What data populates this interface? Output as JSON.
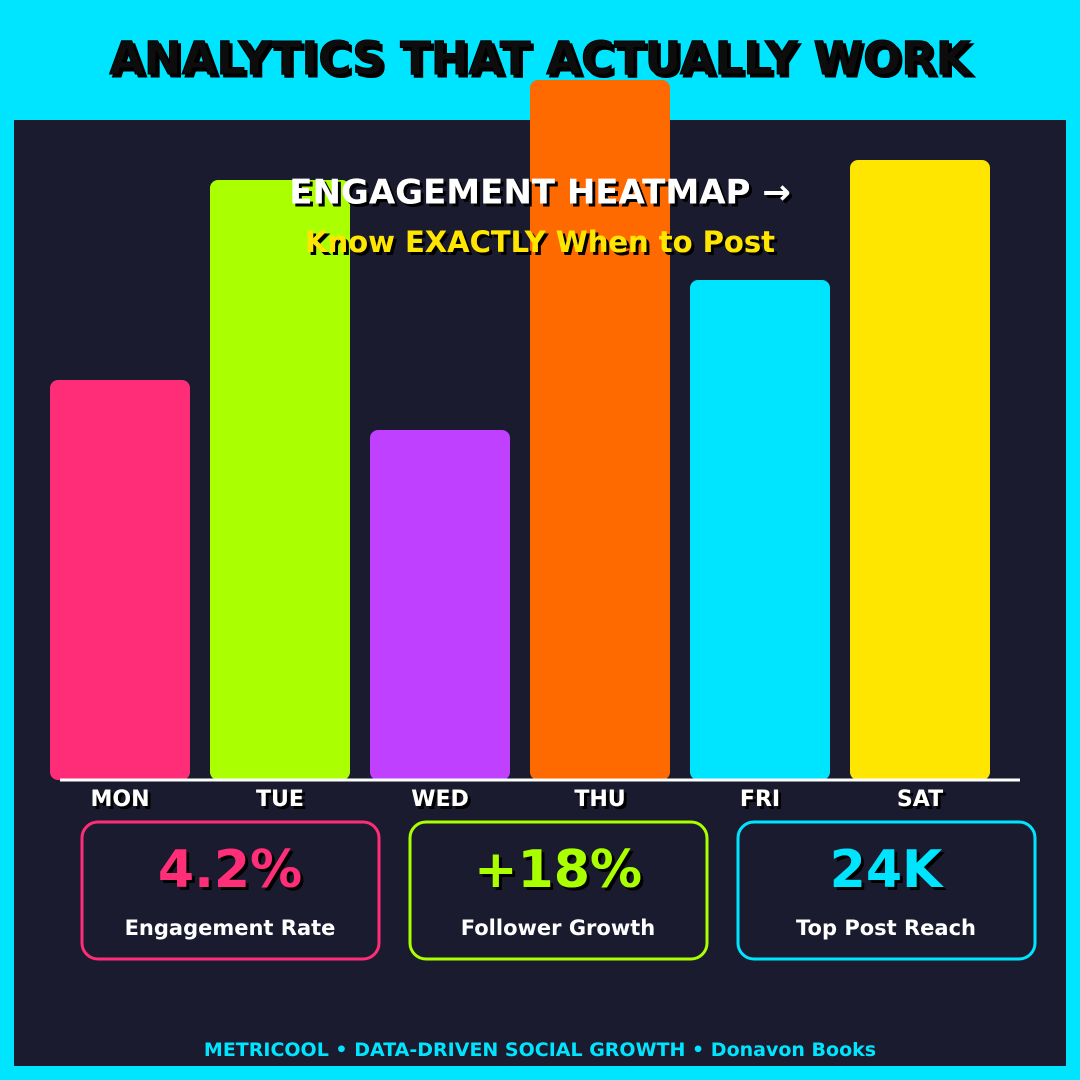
{
  "header": {
    "title": "ANALYTICS THAT ACTUALLY WORK"
  },
  "chart_data": {
    "type": "bar",
    "title": "ENGAGEMENT HEATMAP →",
    "subtitle": "Know EXACTLY When to Post",
    "categories": [
      "MON",
      "TUE",
      "WED",
      "THU",
      "FRI",
      "SAT"
    ],
    "values": [
      400,
      600,
      350,
      700,
      500,
      620
    ],
    "colors": [
      "#ff2d78",
      "#aaff00",
      "#c040ff",
      "#ff6a00",
      "#00e5ff",
      "#ffe600"
    ],
    "ylim": [
      0,
      700
    ]
  },
  "stats": [
    {
      "value": "4.2%",
      "label": "Engagement Rate",
      "color": "#ff2d78"
    },
    {
      "value": "+18%",
      "label": "Follower Growth",
      "color": "#aaff00"
    },
    {
      "value": "24K",
      "label": "Top Post Reach",
      "color": "#00e5ff"
    }
  ],
  "footer": [
    "METRICOOL",
    "DATA-DRIVEN SOCIAL GROWTH",
    "Donavon Books"
  ]
}
